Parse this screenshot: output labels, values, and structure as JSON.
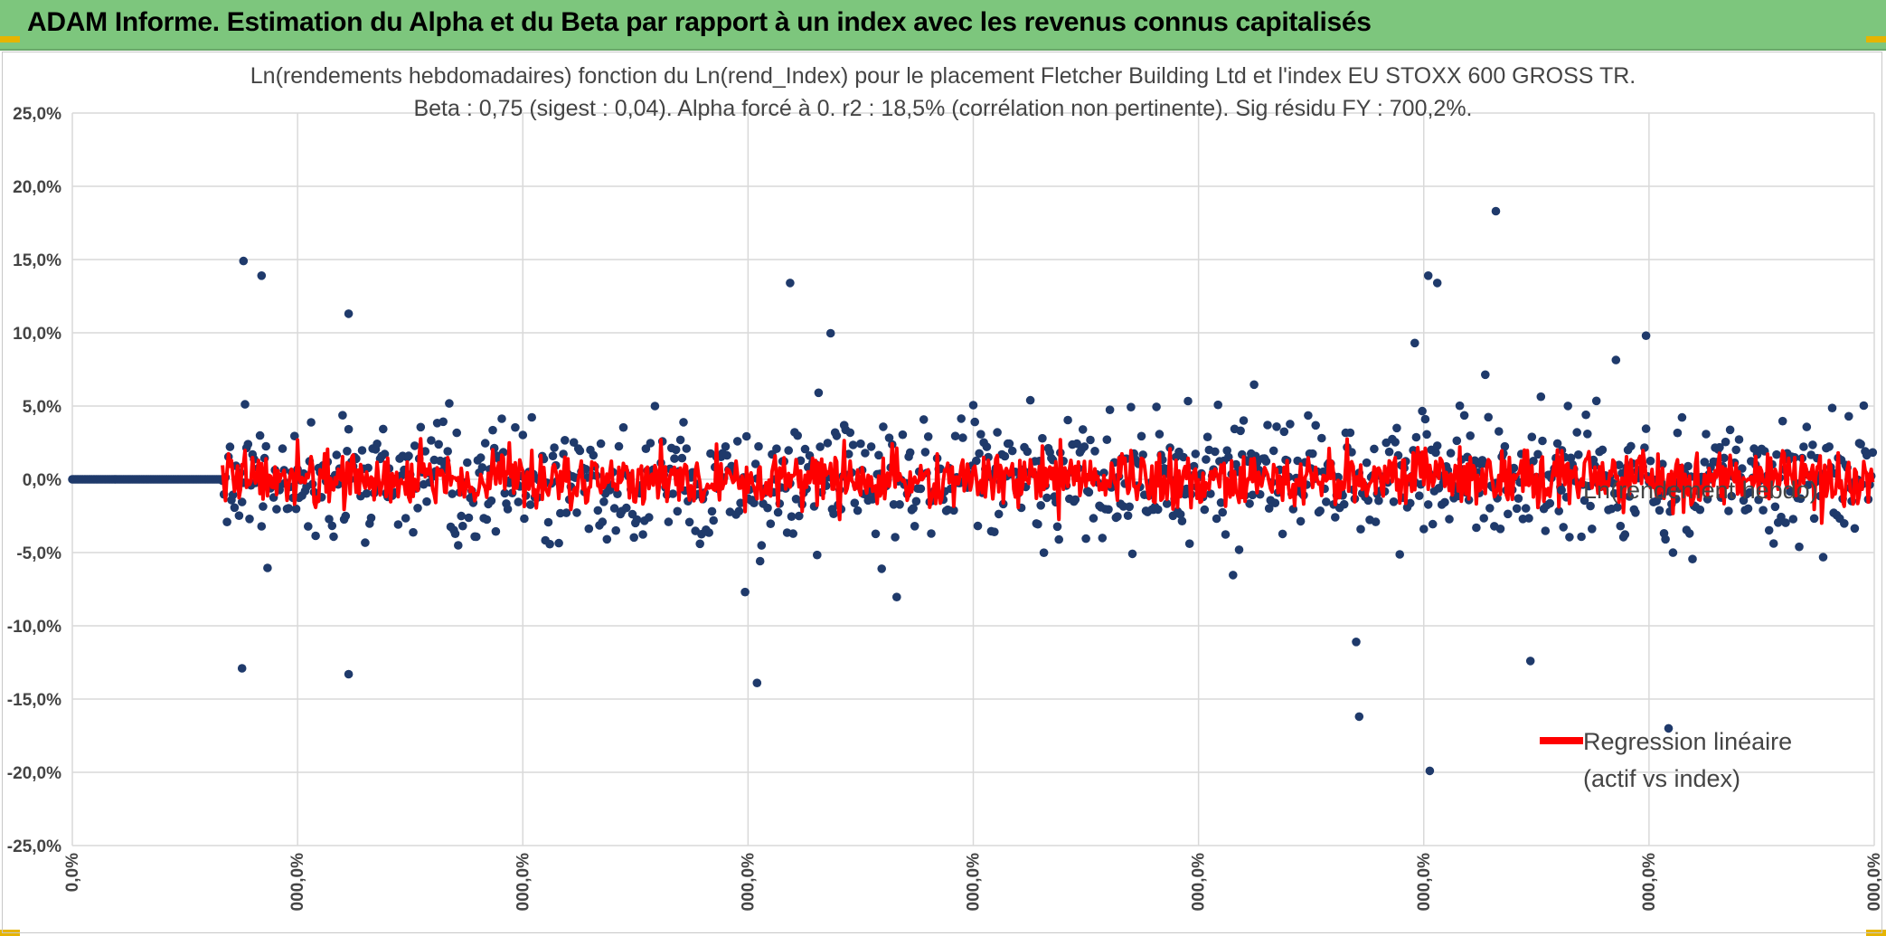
{
  "header": {
    "title": "ADAM Informe. Estimation du Alpha et du Beta par rapport à un index avec les revenus connus capitalisés"
  },
  "colors": {
    "header_bg": "#7dc67d",
    "scatter": "#1f3a6b",
    "regression": "#ff0000",
    "grid": "#d9d9d9",
    "accent_corner": "#e6b400"
  },
  "chart_data": {
    "type": "scatter",
    "title": "Ln(rendements hebdomadaires) fonction du Ln(rend_Index) pour le placement Fletcher Building Ltd et l'index EU STOXX 600 GROSS TR.",
    "subtitle": "Beta : 0,75 (sigest : 0,04). Alpha forcé à 0. r2 : 18,5% (corrélation non pertinente). Sig résidu FY : 700,2%.",
    "ylim": [
      -25,
      25
    ],
    "yticks": [
      25,
      20,
      15,
      10,
      5,
      0,
      -5,
      -10,
      -15,
      -20,
      -25
    ],
    "ytick_labels": [
      "25,0%",
      "20,0%",
      "15,0%",
      "10,0%",
      "5,0%",
      "0,0%",
      "-5,0%",
      "-10,0%",
      "-15,0%",
      "-20,0%",
      "-25,0%"
    ],
    "xlim": [
      0,
      1200
    ],
    "xticks": [
      0,
      150,
      300,
      450,
      600,
      750,
      900,
      1050,
      1200
    ],
    "xtick_labels": [
      "0,0%",
      "000,0%",
      "000,0%",
      "000,0%",
      "000,0%",
      "000,0%",
      "000,0%",
      "000,0%",
      "000,0%"
    ],
    "grid": true,
    "legend_position": "right",
    "n_points": 1200,
    "leading_zero_points": 100,
    "beta": 0.75,
    "notable_points": [
      {
        "x": 114,
        "y": 14.9
      },
      {
        "x": 126,
        "y": 13.9
      },
      {
        "x": 184,
        "y": 11.3
      },
      {
        "x": 478,
        "y": 13.4
      },
      {
        "x": 903,
        "y": 13.9
      },
      {
        "x": 909,
        "y": 13.4
      },
      {
        "x": 948,
        "y": 18.3
      },
      {
        "x": 1048,
        "y": 9.8
      },
      {
        "x": 857,
        "y": -16.2
      },
      {
        "x": 904,
        "y": -19.9
      },
      {
        "x": 1063,
        "y": -17.0
      },
      {
        "x": 456,
        "y": -13.9
      },
      {
        "x": 113,
        "y": -12.9
      },
      {
        "x": 184,
        "y": -13.3
      },
      {
        "x": 855,
        "y": -11.1
      },
      {
        "x": 894,
        "y": 9.3
      },
      {
        "x": 971,
        "y": -12.4
      }
    ],
    "series": [
      {
        "name": "Ln(rendement hebdo)",
        "kind": "scatter",
        "color": "#1f3a6b"
      },
      {
        "name": "Regression linéaire (actif vs index)",
        "kind": "line",
        "color": "#ff0000"
      }
    ],
    "legend": {
      "scatter_label": "Ln(rendement hebdo)",
      "line_label_1": "Regression linéaire",
      "line_label_2": "(actif vs index)"
    }
  }
}
